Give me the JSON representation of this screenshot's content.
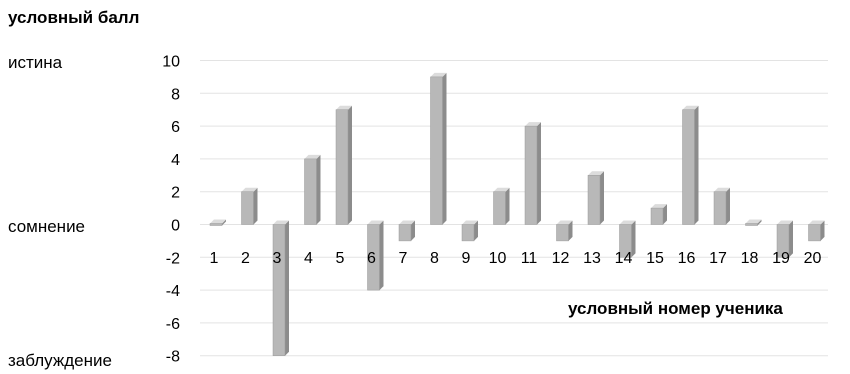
{
  "chart_data": {
    "type": "bar",
    "title": "",
    "ylabel": "условный балл",
    "xlabel": "условный номер ученика",
    "side_labels": {
      "top": "истина",
      "middle": "сомнение",
      "bottom": "заблуждение"
    },
    "ylim": [
      -8,
      10
    ],
    "yticks": [
      10,
      8,
      6,
      4,
      2,
      0,
      -2,
      -4,
      -6,
      -8
    ],
    "grid": true,
    "bar_style": "3d",
    "colors": {
      "bar_front": "#b8b8b8",
      "bar_side": "#8c8c8c",
      "bar_top": "#dcdcdc",
      "grid": "#e3e3e3"
    },
    "categories": [
      "1",
      "2",
      "3",
      "4",
      "5",
      "6",
      "7",
      "8",
      "9",
      "10",
      "11",
      "12",
      "13",
      "14",
      "15",
      "16",
      "17",
      "18",
      "19",
      "20"
    ],
    "values": [
      0,
      2,
      -8,
      4,
      7,
      -4,
      -1,
      9,
      -1,
      2,
      6,
      -1,
      3,
      -2,
      1,
      7,
      2,
      0,
      -2,
      -1
    ]
  }
}
